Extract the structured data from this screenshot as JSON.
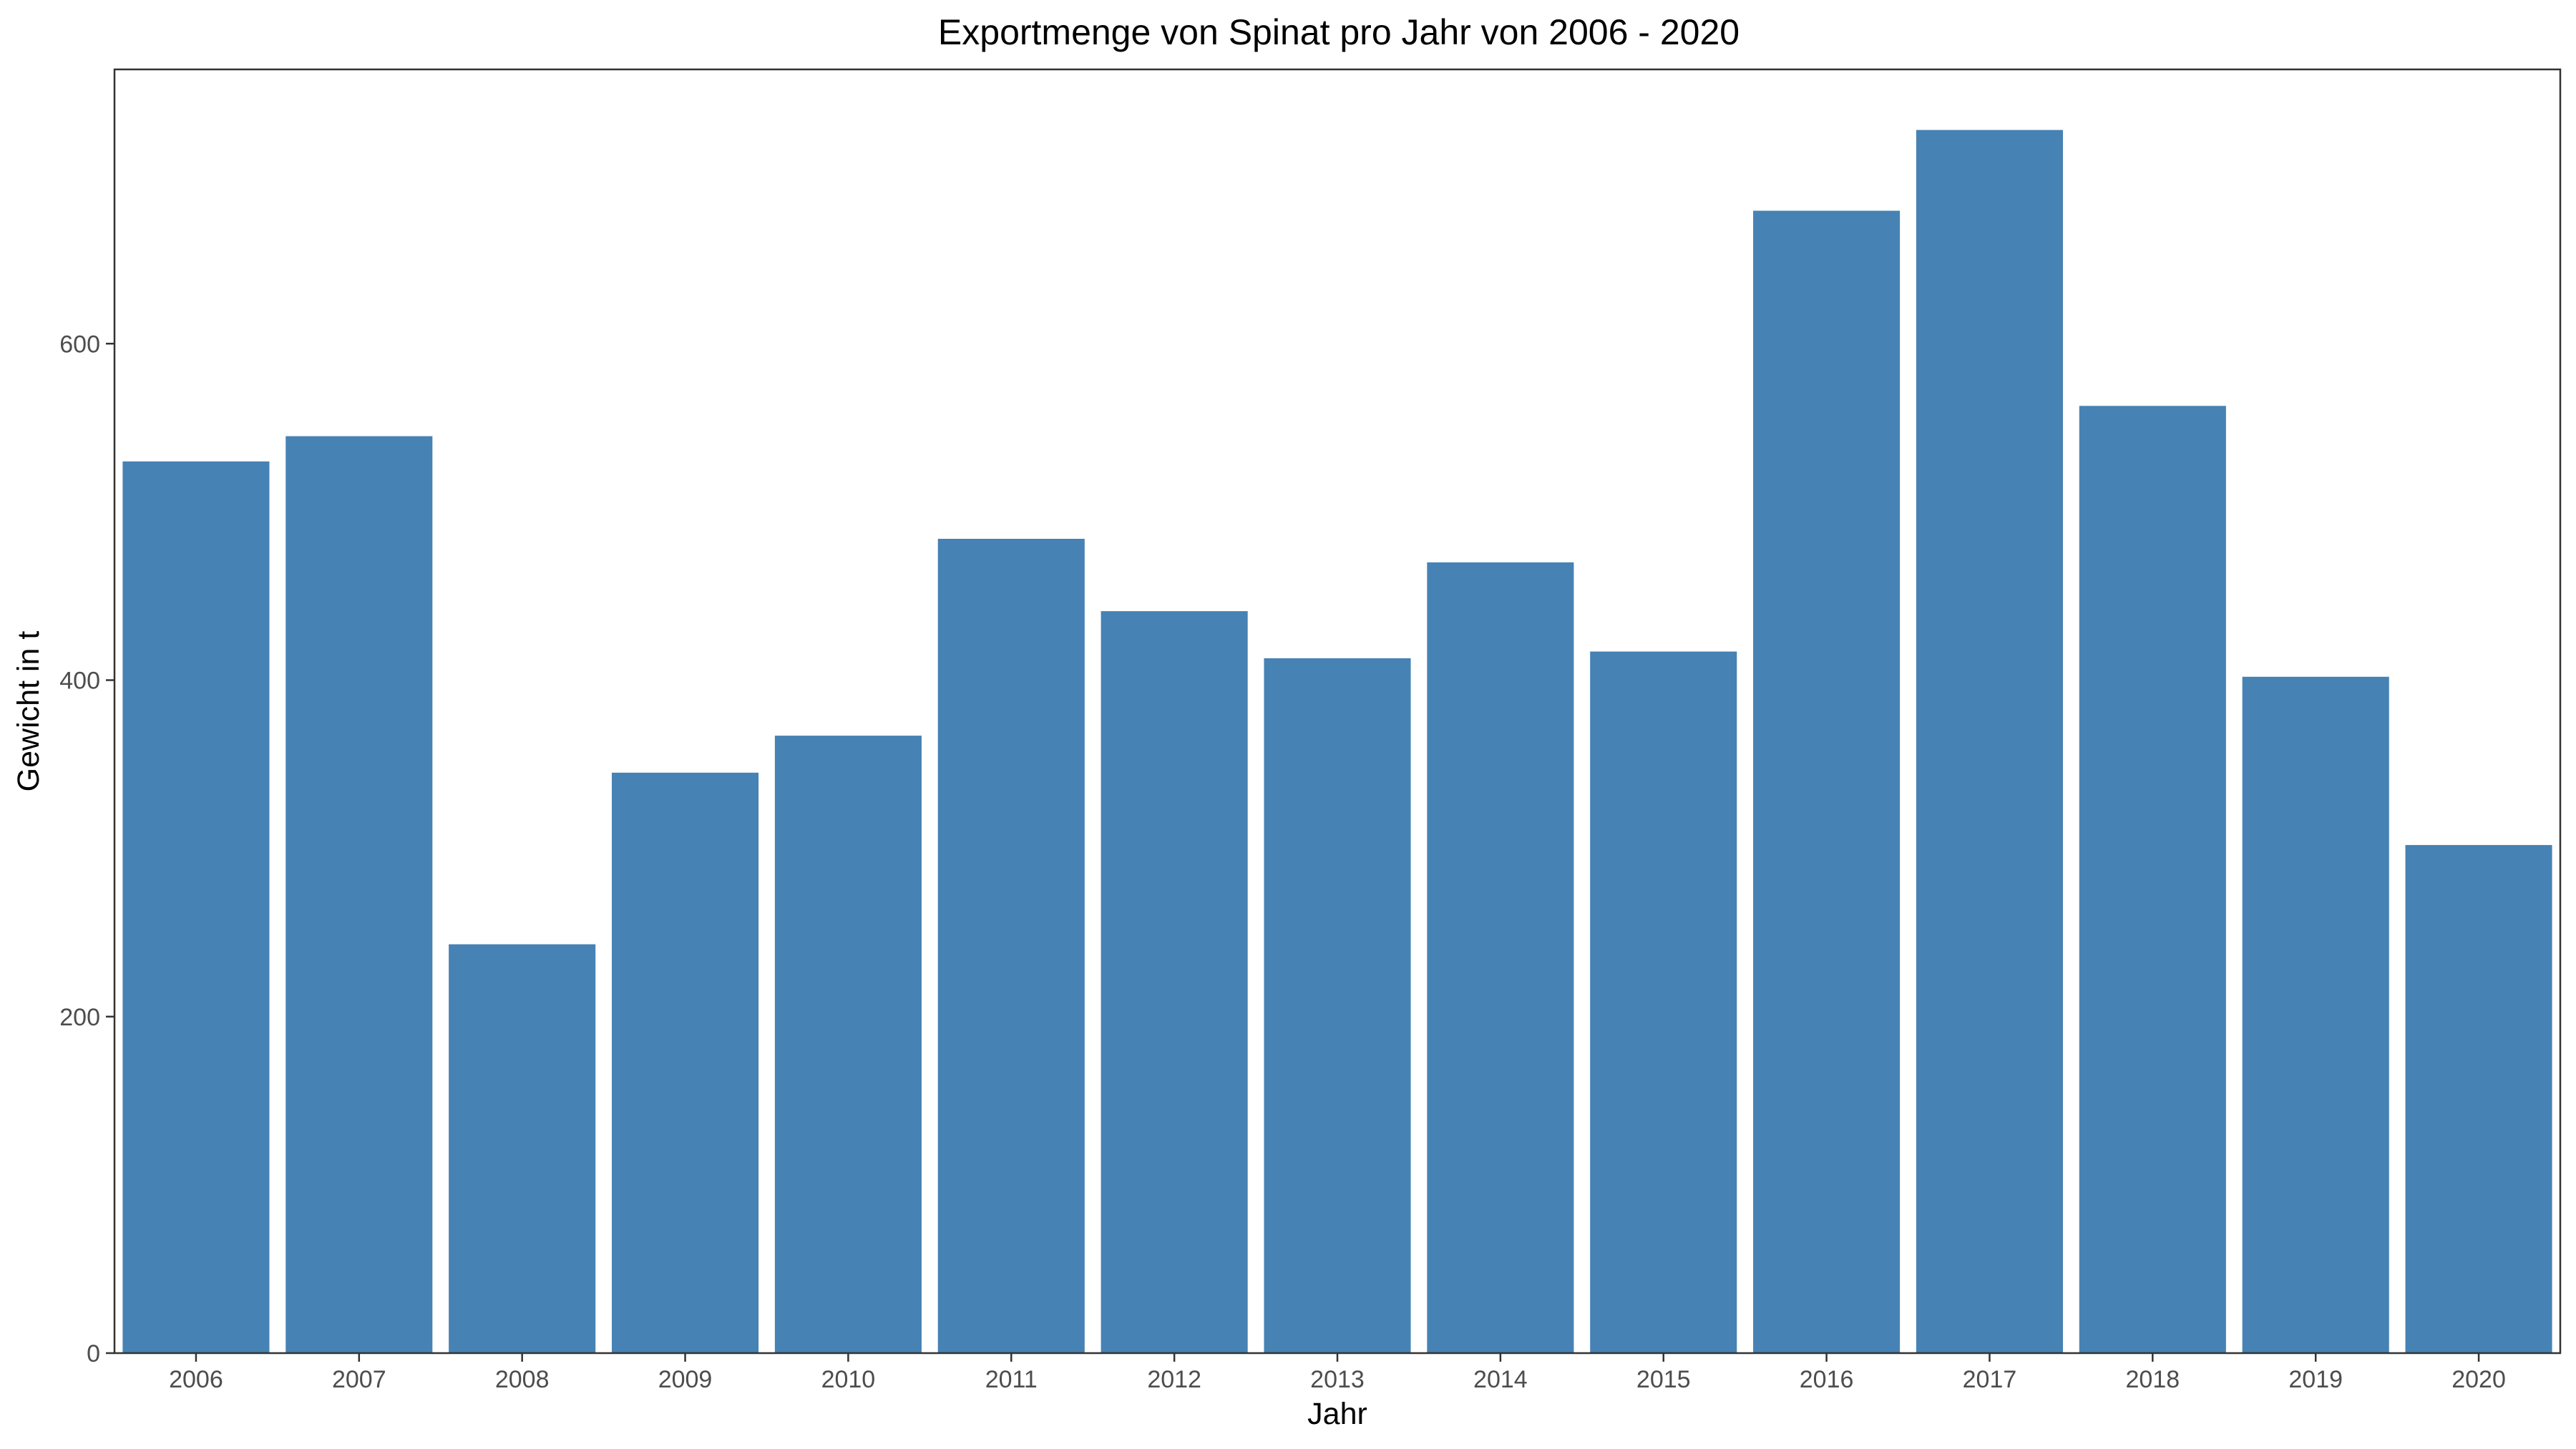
{
  "chart_data": {
    "type": "bar",
    "title": "Exportmenge von Spinat pro Jahr von 2006 - 2020",
    "xlabel": "Jahr",
    "ylabel": "Gewicht in t",
    "categories": [
      "2006",
      "2007",
      "2008",
      "2009",
      "2010",
      "2011",
      "2012",
      "2013",
      "2014",
      "2015",
      "2016",
      "2017",
      "2018",
      "2019",
      "2020"
    ],
    "values": [
      530,
      545,
      243,
      345,
      367,
      484,
      441,
      413,
      470,
      417,
      679,
      727,
      563,
      402,
      302
    ],
    "ylim": [
      0,
      763
    ],
    "yticks": [
      0,
      200,
      400,
      600
    ],
    "bar_color": "#4682b4",
    "grid": false,
    "legend": "none"
  }
}
